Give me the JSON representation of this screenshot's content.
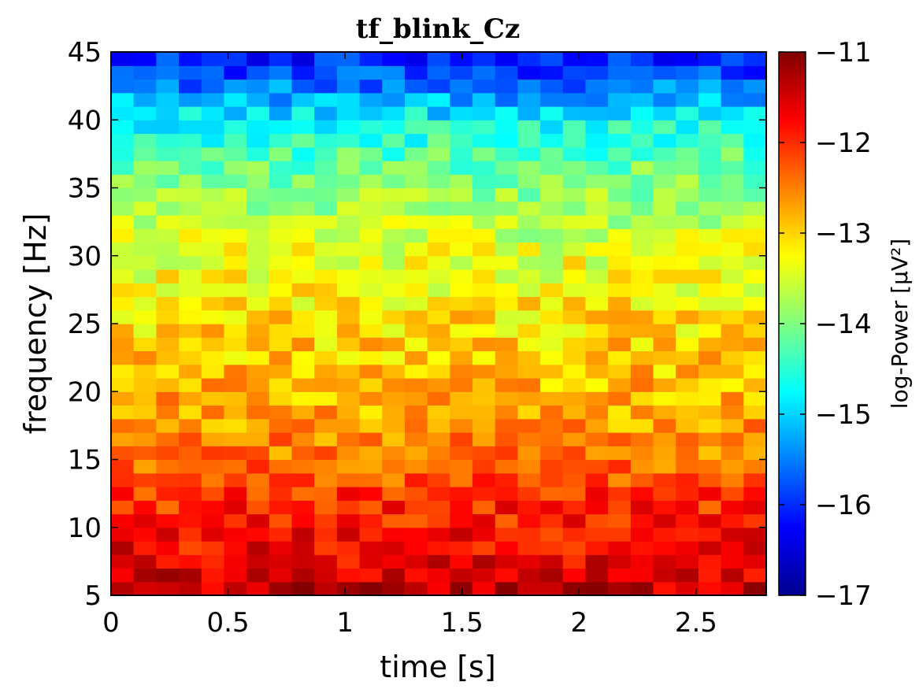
{
  "chart_data": {
    "type": "heatmap",
    "title": "tf_blink_Cz",
    "xlabel": "time [s]",
    "ylabel": "frequency [Hz]",
    "colorbar_label": "log-Power [μV²]",
    "xlim": [
      0,
      2.8
    ],
    "ylim": [
      5,
      45
    ],
    "clim": [
      -17,
      -11
    ],
    "colormap": "jet",
    "x_ticks": [
      0,
      0.5,
      1,
      1.5,
      2,
      2.5
    ],
    "x_tick_labels": [
      "0",
      "0.5",
      "1",
      "1.5",
      "2",
      "2.5"
    ],
    "y_ticks": [
      5,
      10,
      15,
      20,
      25,
      30,
      35,
      40,
      45
    ],
    "y_tick_labels": [
      "5",
      "10",
      "15",
      "20",
      "25",
      "30",
      "35",
      "40",
      "45"
    ],
    "colorbar_ticks": [
      -17,
      -16,
      -15,
      -14,
      -13,
      -12,
      -11
    ],
    "colorbar_tick_labels": [
      "−17",
      "−16",
      "−15",
      "−14",
      "−13",
      "−12",
      "−11"
    ],
    "grid": false,
    "legend": "none",
    "cell_columns": 29,
    "cell_rows": 40,
    "value_profile_by_frequency": [
      {
        "frequency": 5,
        "value": -11.4
      },
      {
        "frequency": 8,
        "value": -11.7
      },
      {
        "frequency": 12,
        "value": -12.0
      },
      {
        "frequency": 15,
        "value": -12.4
      },
      {
        "frequency": 18,
        "value": -12.7
      },
      {
        "frequency": 22,
        "value": -12.9
      },
      {
        "frequency": 26,
        "value": -13.1
      },
      {
        "frequency": 30,
        "value": -13.4
      },
      {
        "frequency": 34,
        "value": -13.8
      },
      {
        "frequency": 37,
        "value": -14.2
      },
      {
        "frequency": 40,
        "value": -14.7
      },
      {
        "frequency": 42,
        "value": -15.4
      },
      {
        "frequency": 45,
        "value": -16.2
      }
    ]
  }
}
